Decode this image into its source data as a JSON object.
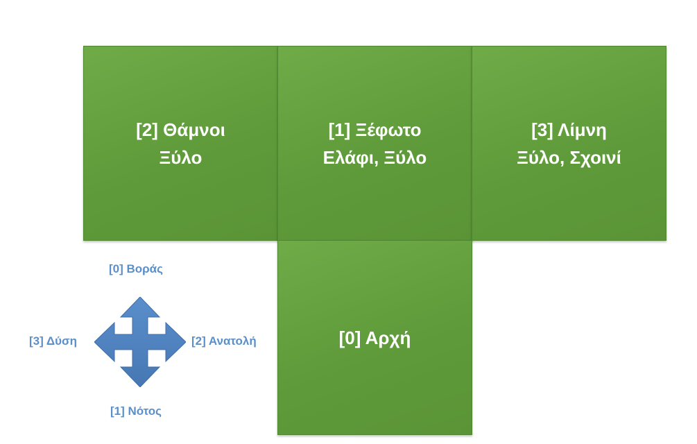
{
  "tiles": {
    "west": {
      "line1": "[2] Θάμνοι",
      "line2": "Ξύλο"
    },
    "north": {
      "line1": "[1] Ξέφωτο",
      "line2": "Ελάφι, Ξύλο"
    },
    "east": {
      "line1": "[3] Λίμνη",
      "line2": "Ξύλο, Σχοινί"
    },
    "start": {
      "line1": "[0] Αρχή"
    }
  },
  "compass": {
    "north": "[0] Βοράς",
    "south": "[1] Νότος",
    "west": "[3] Δύση",
    "east": "[2] Ανατολή",
    "icon": "four-way-arrow-icon"
  },
  "colors": {
    "tile_fill": "#66a23f",
    "tile_text": "#ffffff",
    "compass_fill": "#4f81bd",
    "compass_text": "#5b8fc9"
  }
}
